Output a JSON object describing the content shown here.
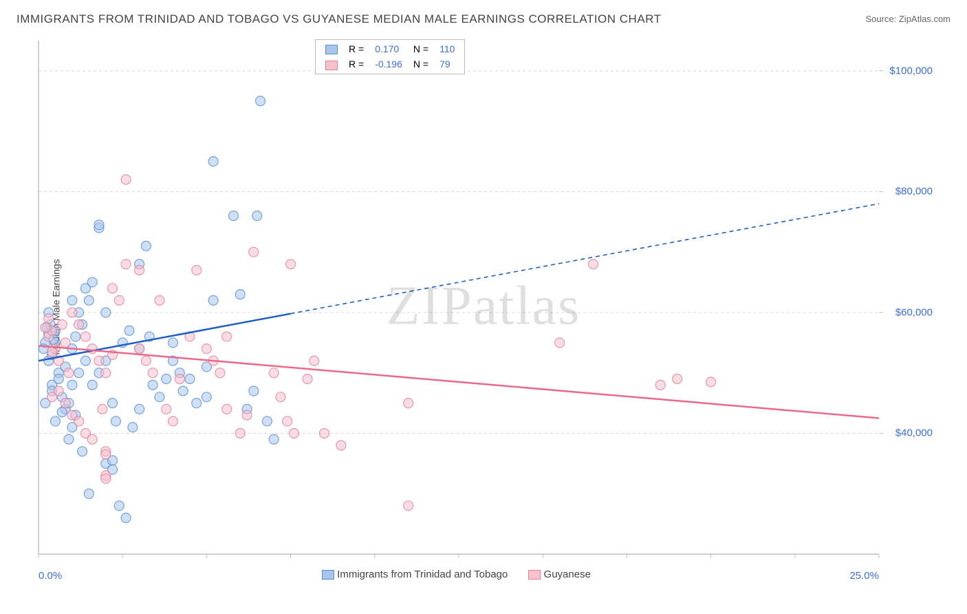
{
  "title": "IMMIGRANTS FROM TRINIDAD AND TOBAGO VS GUYANESE MEDIAN MALE EARNINGS CORRELATION CHART",
  "source": "Source: ZipAtlas.com",
  "ylabel": "Median Male Earnings",
  "watermark": "ZIPatlas",
  "chart": {
    "type": "scatter",
    "xlim": [
      0,
      25
    ],
    "ylim": [
      20000,
      105000
    ],
    "xticks": [
      0,
      25
    ],
    "xtick_labels": [
      "0.0%",
      "25.0%"
    ],
    "yticks": [
      40000,
      60000,
      80000,
      100000
    ],
    "ytick_labels": [
      "$40,000",
      "$60,000",
      "$80,000",
      "$100,000"
    ],
    "grid_color": "#d8d8d8",
    "axis_color": "#bfbfbf",
    "background_color": "#ffffff",
    "marker_radius": 7,
    "marker_opacity": 0.55,
    "series": [
      {
        "name": "Immigrants from Trinidad and Tobago",
        "color_fill": "#a8c6ec",
        "color_stroke": "#5a8fd6",
        "R": "0.170",
        "N": "110",
        "trend": {
          "y_at_x0": 52000,
          "y_at_x25": 78000,
          "solid_until_x": 7.5,
          "color": "#1f5fc4"
        },
        "points": [
          [
            0.2,
            55000
          ],
          [
            0.3,
            56500
          ],
          [
            0.35,
            58000
          ],
          [
            0.3,
            52000
          ],
          [
            0.4,
            53000
          ],
          [
            0.5,
            57000
          ],
          [
            0.5,
            55000
          ],
          [
            0.3,
            60000
          ],
          [
            0.4,
            48000
          ],
          [
            0.6,
            50000
          ],
          [
            0.7,
            46000
          ],
          [
            0.8,
            44000
          ],
          [
            1.0,
            48000
          ],
          [
            1.2,
            50000
          ],
          [
            1.0,
            54000
          ],
          [
            1.1,
            56000
          ],
          [
            1.3,
            58000
          ],
          [
            1.5,
            62000
          ],
          [
            1.6,
            65000
          ],
          [
            1.8,
            74000
          ],
          [
            1.8,
            74500
          ],
          [
            2.0,
            60000
          ],
          [
            2.2,
            45000
          ],
          [
            2.3,
            42000
          ],
          [
            2.0,
            35000
          ],
          [
            2.2,
            35500
          ],
          [
            3.0,
            44000
          ],
          [
            3.4,
            48000
          ],
          [
            3.6,
            46000
          ],
          [
            3.8,
            49000
          ],
          [
            4.0,
            52000
          ],
          [
            4.2,
            50000
          ],
          [
            3.0,
            68000
          ],
          [
            3.2,
            71000
          ],
          [
            4.0,
            55000
          ],
          [
            4.3,
            47000
          ],
          [
            4.5,
            49000
          ],
          [
            4.7,
            45000
          ],
          [
            5.0,
            51000
          ],
          [
            5.2,
            62000
          ],
          [
            5.2,
            85000
          ],
          [
            5.8,
            76000
          ],
          [
            6.0,
            63000
          ],
          [
            6.2,
            44000
          ],
          [
            6.4,
            47000
          ],
          [
            6.6,
            95000
          ],
          [
            6.8,
            42000
          ],
          [
            6.5,
            76000
          ],
          [
            0.2,
            45000
          ],
          [
            0.4,
            47000
          ],
          [
            0.6,
            49000
          ],
          [
            0.8,
            51000
          ],
          [
            0.9,
            39000
          ],
          [
            1.0,
            41000
          ],
          [
            1.1,
            43000
          ],
          [
            1.3,
            37000
          ],
          [
            1.4,
            52000
          ],
          [
            1.6,
            48000
          ],
          [
            1.8,
            50000
          ],
          [
            2.0,
            52000
          ],
          [
            2.2,
            34000
          ],
          [
            2.4,
            28000
          ],
          [
            2.6,
            26000
          ],
          [
            2.8,
            41000
          ],
          [
            1.0,
            62000
          ],
          [
            1.2,
            60000
          ],
          [
            1.4,
            64000
          ],
          [
            2.5,
            55000
          ],
          [
            2.7,
            57000
          ],
          [
            3.0,
            54000
          ],
          [
            3.3,
            56000
          ],
          [
            5.0,
            46000
          ],
          [
            7.0,
            39000
          ],
          [
            1.5,
            30000
          ],
          [
            0.5,
            42000
          ],
          [
            0.7,
            43500
          ],
          [
            0.9,
            45000
          ],
          [
            0.15,
            54000
          ],
          [
            0.25,
            57500
          ],
          [
            0.45,
            55500
          ]
        ]
      },
      {
        "name": "Guyanese",
        "color_fill": "#f5c1cd",
        "color_stroke": "#e57f9a",
        "R": "-0.196",
        "N": "79",
        "trend": {
          "y_at_x0": 54500,
          "y_at_x25": 42500,
          "solid_until_x": 25,
          "color": "#e86a8c"
        },
        "points": [
          [
            0.3,
            56000
          ],
          [
            0.4,
            57000
          ],
          [
            0.5,
            54000
          ],
          [
            0.6,
            52000
          ],
          [
            0.7,
            58000
          ],
          [
            0.8,
            55000
          ],
          [
            0.9,
            50000
          ],
          [
            1.0,
            60000
          ],
          [
            1.2,
            58000
          ],
          [
            1.4,
            56000
          ],
          [
            1.6,
            54000
          ],
          [
            1.8,
            52000
          ],
          [
            2.0,
            50000
          ],
          [
            2.2,
            64000
          ],
          [
            2.4,
            62000
          ],
          [
            2.6,
            68000
          ],
          [
            0.4,
            46000
          ],
          [
            0.6,
            47000
          ],
          [
            0.8,
            45000
          ],
          [
            1.0,
            43000
          ],
          [
            1.2,
            42000
          ],
          [
            1.4,
            40000
          ],
          [
            1.6,
            39000
          ],
          [
            2.0,
            33000
          ],
          [
            2.0,
            32500
          ],
          [
            2.6,
            82000
          ],
          [
            4.5,
            56000
          ],
          [
            4.7,
            67000
          ],
          [
            5.0,
            54000
          ],
          [
            5.2,
            52000
          ],
          [
            5.4,
            50000
          ],
          [
            5.6,
            44000
          ],
          [
            5.6,
            56000
          ],
          [
            6.0,
            40000
          ],
          [
            6.2,
            43000
          ],
          [
            6.4,
            70000
          ],
          [
            7.0,
            50000
          ],
          [
            7.2,
            46000
          ],
          [
            7.4,
            42000
          ],
          [
            7.6,
            40000
          ],
          [
            7.5,
            68000
          ],
          [
            8.0,
            49000
          ],
          [
            8.2,
            52000
          ],
          [
            8.5,
            40000
          ],
          [
            9.0,
            38000
          ],
          [
            11.0,
            45000
          ],
          [
            11.0,
            28000
          ],
          [
            15.5,
            55000
          ],
          [
            16.5,
            68000
          ],
          [
            18.5,
            48000
          ],
          [
            19.0,
            49000
          ],
          [
            20.0,
            48500
          ],
          [
            2.0,
            37000
          ],
          [
            2.0,
            36500
          ],
          [
            3.0,
            54000
          ],
          [
            3.2,
            52000
          ],
          [
            3.4,
            50000
          ],
          [
            3.6,
            62000
          ],
          [
            3.8,
            44000
          ],
          [
            4.0,
            42000
          ],
          [
            4.2,
            49000
          ],
          [
            3.0,
            67000
          ],
          [
            2.2,
            53000
          ],
          [
            1.9,
            44000
          ],
          [
            0.2,
            57500
          ],
          [
            0.3,
            59000
          ],
          [
            0.4,
            53500
          ]
        ]
      }
    ],
    "legend_top": {
      "R_label": "R =",
      "N_label": "N =",
      "value_color": "#3b6fd6",
      "label_color": "#666"
    },
    "legend_bottom_series": [
      "Immigrants from Trinidad and Tobago",
      "Guyanese"
    ]
  }
}
